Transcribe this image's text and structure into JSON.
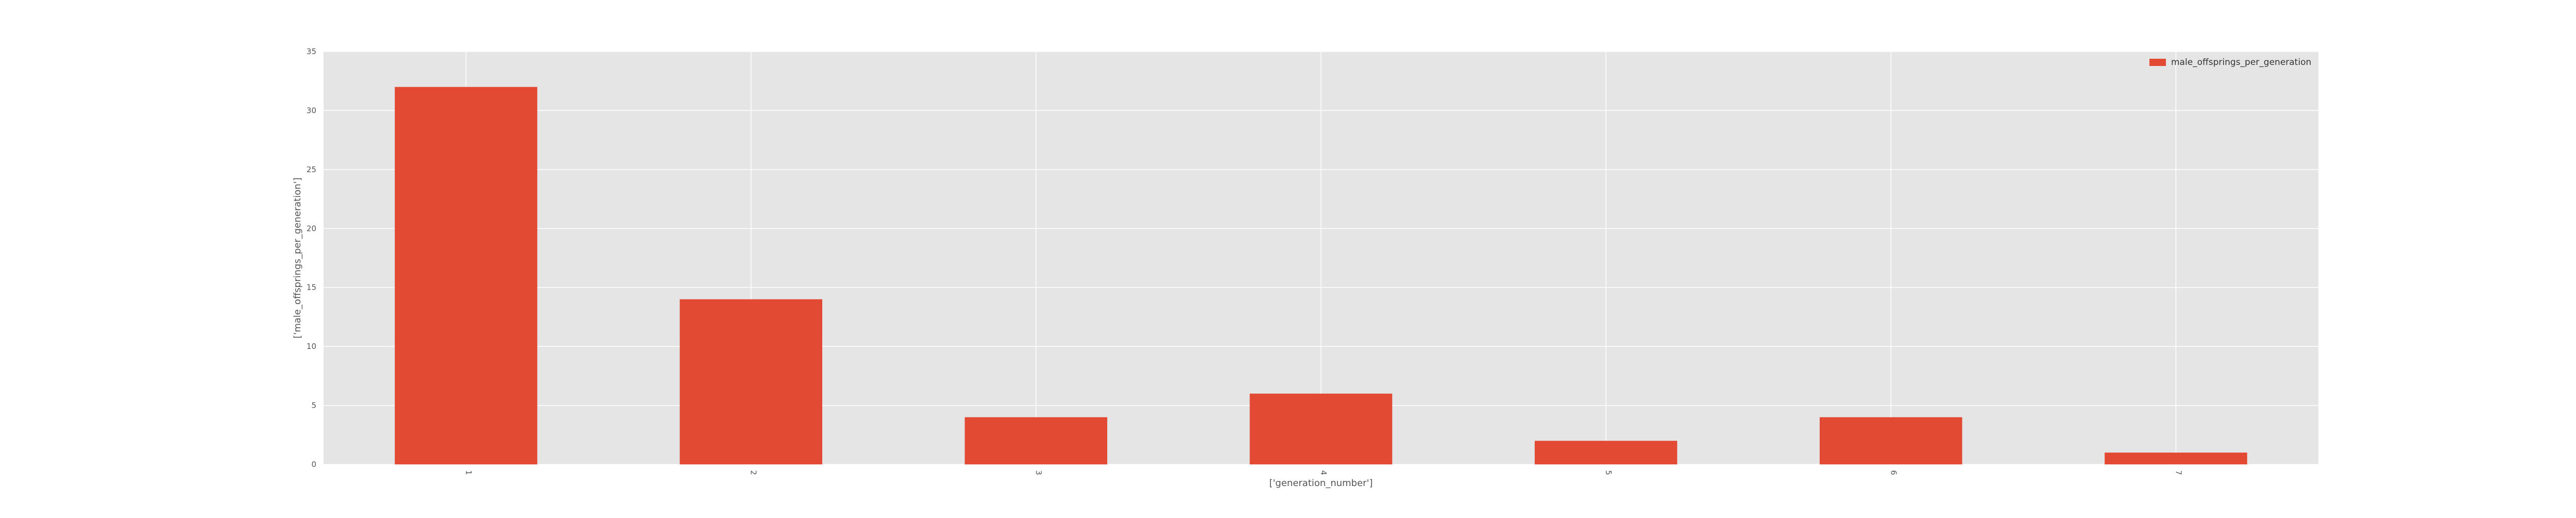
{
  "chart_data": {
    "type": "bar",
    "categories": [
      "1",
      "2",
      "3",
      "4",
      "5",
      "6",
      "7"
    ],
    "series": [
      {
        "name": "male_offsprings_per_generation",
        "values": [
          32,
          14,
          4,
          6,
          2,
          4,
          1
        ]
      }
    ],
    "xlabel": "['generation_number']",
    "ylabel": "['male_offsprings_per_generation']",
    "ylim": [
      0,
      35
    ],
    "yticks": [
      0,
      5,
      10,
      15,
      20,
      25,
      30,
      35
    ],
    "grid": true,
    "legend_position": "top-right"
  },
  "colors": {
    "bar": "#E24A33",
    "plot_background": "#E5E5E5",
    "grid": "#FFFFFF",
    "text": "#555555"
  }
}
